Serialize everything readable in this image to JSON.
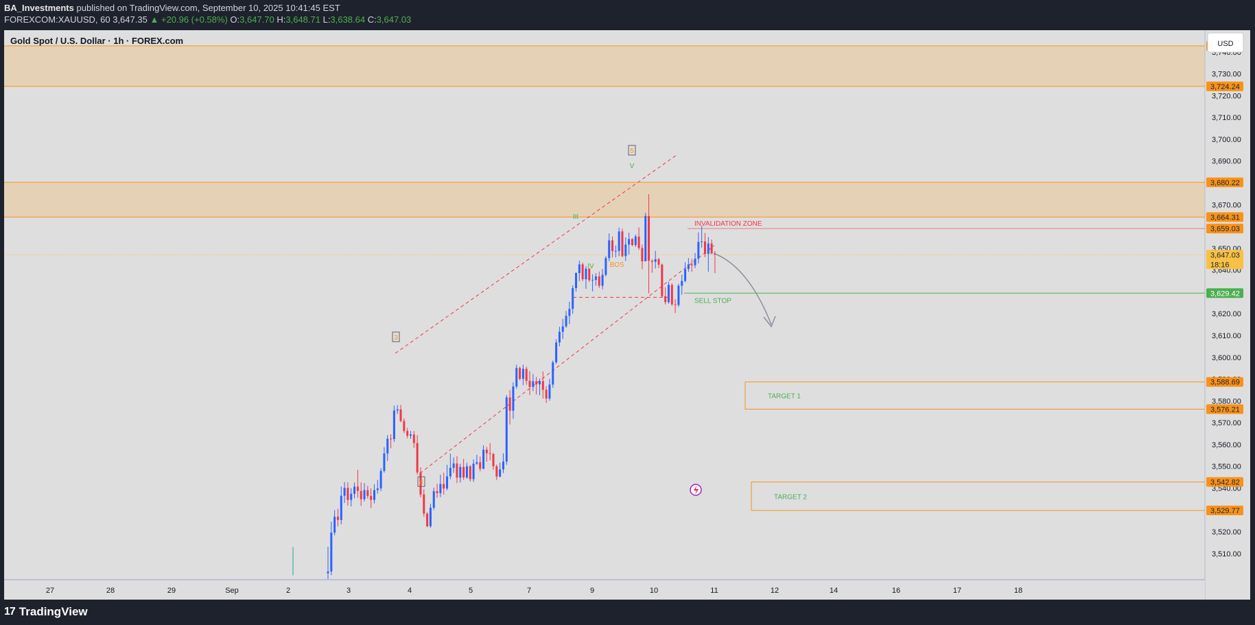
{
  "header": {
    "publisher": "BA_Investments",
    "published_text": "published on TradingView.com, September 10, 2025 10:41:45 EST",
    "symbol_line": "FOREXCOM:XAUUSD, 60",
    "last": "3,647.35",
    "change": "▲ +20.96 (+0.58%)",
    "o_label": "O:",
    "o": "3,647.70",
    "h_label": "H:",
    "h": "3,648.71",
    "l_label": "L:",
    "l": "3,638.64",
    "c_label": "C:",
    "c": "3,647.03"
  },
  "chart_data": {
    "type": "candlestick",
    "title": "Gold Spot / U.S. Dollar · 1h · FOREX.com",
    "currency": "USD",
    "y_range": [
      3498,
      3750
    ],
    "y_ticks": [
      "3,510.00",
      "3,520.00",
      "3,530.00",
      "3,540.00",
      "3,550.00",
      "3,560.00",
      "3,570.00",
      "3,580.00",
      "3,590.00",
      "3,600.00",
      "3,610.00",
      "3,620.00",
      "3,630.00",
      "3,640.00",
      "3,650.00",
      "3,660.00",
      "3,670.00",
      "3,680.00",
      "3,690.00",
      "3,700.00",
      "3,710.00",
      "3,720.00",
      "3,730.00",
      "3,740.00"
    ],
    "x_ticks": [
      "27",
      "28",
      "29",
      "Sep",
      "2",
      "3",
      "4",
      "5",
      "7",
      "9",
      "10",
      "11",
      "12",
      "14",
      "16",
      "17",
      "18"
    ],
    "price_tags": [
      {
        "label": "3,742.79",
        "value": 3742.79,
        "color": "#f7931a",
        "text": "#1e222d"
      },
      {
        "label": "3,724.24",
        "value": 3724.24,
        "color": "#f7931a",
        "text": "#1e222d"
      },
      {
        "label": "3,680.22",
        "value": 3680.22,
        "color": "#f7931a",
        "text": "#1e222d"
      },
      {
        "label": "3,664.31",
        "value": 3664.31,
        "color": "#f7931a",
        "text": "#1e222d"
      },
      {
        "label": "3,659.03",
        "value": 3659.03,
        "color": "#f7931a",
        "text": "#1e222d"
      },
      {
        "label": "3,647.03",
        "value": 3647.03,
        "color": "#f7c145",
        "text": "#1e222d"
      },
      {
        "label": "3,629.42",
        "value": 3629.42,
        "color": "#4caf50",
        "text": "#ffffff"
      },
      {
        "label": "3,588.69",
        "value": 3588.69,
        "color": "#f7931a",
        "text": "#1e222d"
      },
      {
        "label": "3,576.21",
        "value": 3576.21,
        "color": "#f7931a",
        "text": "#1e222d"
      },
      {
        "label": "3,542.82",
        "value": 3542.82,
        "color": "#f7931a",
        "text": "#1e222d"
      },
      {
        "label": "3,529.77",
        "value": 3529.77,
        "color": "#f7931a",
        "text": "#1e222d"
      }
    ],
    "countdown": "18:16",
    "zones": [
      {
        "top": 3742.79,
        "bottom": 3724.24,
        "color": "#f5b65b"
      },
      {
        "top": 3680.22,
        "bottom": 3664.31,
        "color": "#f5b65b"
      }
    ],
    "annotations": {
      "invalidation": {
        "label": "INVALIDATION ZONE",
        "value": 3659.03
      },
      "sell_stop": {
        "label": "SELL STOP",
        "value": 3629.42
      },
      "target1": {
        "label": "TARGET 1",
        "top": 3588.69,
        "bottom": 3576.21
      },
      "target2": {
        "label": "TARGET 2",
        "top": 3542.82,
        "bottom": 3529.77
      },
      "waves": [
        {
          "label": "3",
          "boxed": true
        },
        {
          "label": "4",
          "boxed": true
        },
        {
          "label": "5",
          "boxed": true
        },
        {
          "label": "III",
          "boxed": false
        },
        {
          "label": "IV",
          "boxed": false
        },
        {
          "label": "V",
          "boxed": false
        },
        {
          "label": "BOS",
          "boxed": false
        }
      ]
    },
    "candles": [
      {
        "o": 3501.0,
        "h": 3513.1,
        "l": 3498.3,
        "c": 3501.8
      },
      {
        "o": 3501.8,
        "h": 3524.6,
        "l": 3500.1,
        "c": 3519.6
      },
      {
        "o": 3519.6,
        "h": 3529.9,
        "l": 3518.4,
        "c": 3526.9
      },
      {
        "o": 3526.9,
        "h": 3530.5,
        "l": 3522.5,
        "c": 3525.4
      },
      {
        "o": 3525.4,
        "h": 3540.7,
        "l": 3523.4,
        "c": 3536.5
      },
      {
        "o": 3536.5,
        "h": 3542.8,
        "l": 3533.2,
        "c": 3540.1
      },
      {
        "o": 3540.1,
        "h": 3542.7,
        "l": 3532.0,
        "c": 3534.6
      },
      {
        "o": 3534.6,
        "h": 3540.0,
        "l": 3531.6,
        "c": 3537.4
      },
      {
        "o": 3537.4,
        "h": 3542.6,
        "l": 3535.3,
        "c": 3540.7
      },
      {
        "o": 3540.7,
        "h": 3548.4,
        "l": 3535.6,
        "c": 3538.7
      },
      {
        "o": 3538.7,
        "h": 3542.6,
        "l": 3531.8,
        "c": 3534.9
      },
      {
        "o": 3534.9,
        "h": 3542.3,
        "l": 3533.9,
        "c": 3539.1
      },
      {
        "o": 3539.1,
        "h": 3541.1,
        "l": 3535.2,
        "c": 3536.4
      },
      {
        "o": 3536.4,
        "h": 3539.9,
        "l": 3530.9,
        "c": 3534.6
      },
      {
        "o": 3534.6,
        "h": 3541.8,
        "l": 3533.0,
        "c": 3539.1
      },
      {
        "o": 3539.1,
        "h": 3543.7,
        "l": 3537.5,
        "c": 3539.9
      },
      {
        "o": 3539.9,
        "h": 3549.1,
        "l": 3538.6,
        "c": 3547.9
      },
      {
        "o": 3547.9,
        "h": 3558.8,
        "l": 3547.1,
        "c": 3555.9
      },
      {
        "o": 3555.9,
        "h": 3564.3,
        "l": 3552.4,
        "c": 3562.7
      },
      {
        "o": 3562.7,
        "h": 3564.7,
        "l": 3558.3,
        "c": 3562.5
      },
      {
        "o": 3562.5,
        "h": 3577.9,
        "l": 3561.2,
        "c": 3575.6
      },
      {
        "o": 3575.6,
        "h": 3578.1,
        "l": 3574.1,
        "c": 3576.1
      },
      {
        "o": 3576.1,
        "h": 3578.2,
        "l": 3570.2,
        "c": 3570.8
      },
      {
        "o": 3570.8,
        "h": 3572.0,
        "l": 3565.3,
        "c": 3566.2
      },
      {
        "o": 3566.2,
        "h": 3567.6,
        "l": 3562.9,
        "c": 3564.0
      },
      {
        "o": 3564.0,
        "h": 3566.2,
        "l": 3562.6,
        "c": 3564.6
      },
      {
        "o": 3564.6,
        "h": 3566.2,
        "l": 3558.5,
        "c": 3560.7
      },
      {
        "o": 3560.7,
        "h": 3564.3,
        "l": 3546.2,
        "c": 3547.2
      },
      {
        "o": 3547.2,
        "h": 3549.6,
        "l": 3535.8,
        "c": 3537.1
      },
      {
        "o": 3537.1,
        "h": 3539.5,
        "l": 3526.9,
        "c": 3528.3
      },
      {
        "o": 3528.3,
        "h": 3529.0,
        "l": 3522.1,
        "c": 3522.5
      },
      {
        "o": 3522.5,
        "h": 3532.8,
        "l": 3521.8,
        "c": 3531.0
      },
      {
        "o": 3531.0,
        "h": 3540.2,
        "l": 3530.0,
        "c": 3538.6
      },
      {
        "o": 3538.6,
        "h": 3542.0,
        "l": 3535.6,
        "c": 3537.7
      },
      {
        "o": 3537.7,
        "h": 3546.2,
        "l": 3535.9,
        "c": 3541.9
      },
      {
        "o": 3541.9,
        "h": 3547.1,
        "l": 3537.0,
        "c": 3539.8
      },
      {
        "o": 3539.8,
        "h": 3550.7,
        "l": 3539.0,
        "c": 3545.4
      },
      {
        "o": 3545.4,
        "h": 3555.8,
        "l": 3544.1,
        "c": 3549.3
      },
      {
        "o": 3549.3,
        "h": 3554.1,
        "l": 3547.0,
        "c": 3551.3
      },
      {
        "o": 3551.3,
        "h": 3554.7,
        "l": 3542.3,
        "c": 3544.8
      },
      {
        "o": 3544.8,
        "h": 3551.2,
        "l": 3542.6,
        "c": 3549.7
      },
      {
        "o": 3549.7,
        "h": 3553.4,
        "l": 3543.8,
        "c": 3544.9
      },
      {
        "o": 3544.9,
        "h": 3551.6,
        "l": 3544.3,
        "c": 3550.0
      },
      {
        "o": 3550.0,
        "h": 3550.6,
        "l": 3543.0,
        "c": 3544.1
      },
      {
        "o": 3544.1,
        "h": 3553.2,
        "l": 3542.9,
        "c": 3551.2
      },
      {
        "o": 3551.2,
        "h": 3555.3,
        "l": 3550.6,
        "c": 3551.9
      },
      {
        "o": 3551.9,
        "h": 3554.5,
        "l": 3547.7,
        "c": 3548.9
      },
      {
        "o": 3548.9,
        "h": 3559.7,
        "l": 3548.6,
        "c": 3557.6
      },
      {
        "o": 3557.6,
        "h": 3558.9,
        "l": 3552.1,
        "c": 3556.0
      },
      {
        "o": 3556.0,
        "h": 3560.7,
        "l": 3552.7,
        "c": 3555.7
      },
      {
        "o": 3555.7,
        "h": 3556.1,
        "l": 3548.4,
        "c": 3550.0
      },
      {
        "o": 3550.0,
        "h": 3550.8,
        "l": 3543.7,
        "c": 3545.3
      },
      {
        "o": 3545.3,
        "h": 3551.7,
        "l": 3544.9,
        "c": 3548.6
      },
      {
        "o": 3548.6,
        "h": 3556.0,
        "l": 3546.9,
        "c": 3552.2
      },
      {
        "o": 3552.2,
        "h": 3582.7,
        "l": 3550.7,
        "c": 3581.6
      },
      {
        "o": 3581.6,
        "h": 3585.0,
        "l": 3569.2,
        "c": 3575.5
      },
      {
        "o": 3575.5,
        "h": 3588.5,
        "l": 3571.8,
        "c": 3586.6
      },
      {
        "o": 3586.6,
        "h": 3596.6,
        "l": 3585.6,
        "c": 3595.1
      },
      {
        "o": 3595.1,
        "h": 3595.7,
        "l": 3589.5,
        "c": 3590.1
      },
      {
        "o": 3590.1,
        "h": 3596.6,
        "l": 3587.2,
        "c": 3594.7
      },
      {
        "o": 3594.7,
        "h": 3595.7,
        "l": 3587.4,
        "c": 3589.2
      },
      {
        "o": 3589.2,
        "h": 3593.6,
        "l": 3582.7,
        "c": 3586.4
      },
      {
        "o": 3586.4,
        "h": 3592.3,
        "l": 3584.5,
        "c": 3589.0
      },
      {
        "o": 3589.0,
        "h": 3591.0,
        "l": 3582.9,
        "c": 3587.6
      },
      {
        "o": 3587.6,
        "h": 3590.3,
        "l": 3582.6,
        "c": 3589.1
      },
      {
        "o": 3589.1,
        "h": 3593.5,
        "l": 3581.1,
        "c": 3585.1
      },
      {
        "o": 3585.1,
        "h": 3586.8,
        "l": 3579.1,
        "c": 3581.1
      },
      {
        "o": 3581.1,
        "h": 3590.1,
        "l": 3580.1,
        "c": 3587.5
      },
      {
        "o": 3587.5,
        "h": 3598.5,
        "l": 3586.0,
        "c": 3597.7
      },
      {
        "o": 3597.7,
        "h": 3608.3,
        "l": 3596.9,
        "c": 3606.8
      },
      {
        "o": 3606.8,
        "h": 3614.0,
        "l": 3605.0,
        "c": 3611.7
      },
      {
        "o": 3611.7,
        "h": 3617.6,
        "l": 3608.4,
        "c": 3614.2
      },
      {
        "o": 3614.2,
        "h": 3621.2,
        "l": 3613.5,
        "c": 3619.0
      },
      {
        "o": 3619.0,
        "h": 3625.5,
        "l": 3615.2,
        "c": 3622.2
      },
      {
        "o": 3622.2,
        "h": 3633.0,
        "l": 3620.0,
        "c": 3631.7
      },
      {
        "o": 3631.7,
        "h": 3639.0,
        "l": 3630.1,
        "c": 3638.6
      },
      {
        "o": 3638.6,
        "h": 3644.3,
        "l": 3634.9,
        "c": 3642.6
      },
      {
        "o": 3642.6,
        "h": 3643.4,
        "l": 3634.9,
        "c": 3635.8
      },
      {
        "o": 3635.8,
        "h": 3641.8,
        "l": 3631.4,
        "c": 3640.6
      },
      {
        "o": 3640.6,
        "h": 3640.9,
        "l": 3634.5,
        "c": 3635.4
      },
      {
        "o": 3635.4,
        "h": 3638.1,
        "l": 3630.2,
        "c": 3635.5
      },
      {
        "o": 3635.5,
        "h": 3638.6,
        "l": 3632.8,
        "c": 3637.1
      },
      {
        "o": 3637.1,
        "h": 3639.3,
        "l": 3631.8,
        "c": 3632.8
      },
      {
        "o": 3632.8,
        "h": 3640.5,
        "l": 3631.2,
        "c": 3637.8
      },
      {
        "o": 3637.8,
        "h": 3646.4,
        "l": 3637.1,
        "c": 3645.5
      },
      {
        "o": 3645.5,
        "h": 3656.8,
        "l": 3644.1,
        "c": 3653.6
      },
      {
        "o": 3653.6,
        "h": 3655.4,
        "l": 3645.8,
        "c": 3648.7
      },
      {
        "o": 3648.7,
        "h": 3651.3,
        "l": 3645.8,
        "c": 3648.8
      },
      {
        "o": 3648.8,
        "h": 3659.5,
        "l": 3646.4,
        "c": 3657.7
      },
      {
        "o": 3657.7,
        "h": 3659.0,
        "l": 3645.9,
        "c": 3646.4
      },
      {
        "o": 3646.4,
        "h": 3655.0,
        "l": 3644.2,
        "c": 3651.7
      },
      {
        "o": 3651.7,
        "h": 3657.1,
        "l": 3647.1,
        "c": 3654.2
      },
      {
        "o": 3654.2,
        "h": 3654.7,
        "l": 3650.9,
        "c": 3651.5
      },
      {
        "o": 3651.5,
        "h": 3656.3,
        "l": 3650.6,
        "c": 3655.4
      },
      {
        "o": 3655.4,
        "h": 3659.6,
        "l": 3649.2,
        "c": 3650.1
      },
      {
        "o": 3650.1,
        "h": 3651.7,
        "l": 3640.4,
        "c": 3644.0
      },
      {
        "o": 3644.0,
        "h": 3666.3,
        "l": 3644.2,
        "c": 3664.8
      },
      {
        "o": 3664.8,
        "h": 3674.8,
        "l": 3629.3,
        "c": 3644.3
      },
      {
        "o": 3644.3,
        "h": 3644.9,
        "l": 3638.8,
        "c": 3643.8
      },
      {
        "o": 3643.8,
        "h": 3648.8,
        "l": 3640.7,
        "c": 3645.0
      },
      {
        "o": 3645.0,
        "h": 3645.6,
        "l": 3640.9,
        "c": 3642.5
      },
      {
        "o": 3642.5,
        "h": 3643.0,
        "l": 3627.4,
        "c": 3628.0
      },
      {
        "o": 3628.0,
        "h": 3632.1,
        "l": 3624.2,
        "c": 3625.3
      },
      {
        "o": 3625.3,
        "h": 3634.6,
        "l": 3624.6,
        "c": 3633.2
      },
      {
        "o": 3633.2,
        "h": 3634.0,
        "l": 3623.6,
        "c": 3624.3
      },
      {
        "o": 3624.3,
        "h": 3626.6,
        "l": 3620.3,
        "c": 3624.0
      },
      {
        "o": 3624.0,
        "h": 3633.7,
        "l": 3623.1,
        "c": 3632.8
      },
      {
        "o": 3632.8,
        "h": 3637.9,
        "l": 3628.7,
        "c": 3635.0
      },
      {
        "o": 3635.0,
        "h": 3643.6,
        "l": 3634.4,
        "c": 3640.5
      },
      {
        "o": 3640.5,
        "h": 3645.5,
        "l": 3639.2,
        "c": 3642.6
      },
      {
        "o": 3642.6,
        "h": 3645.1,
        "l": 3639.2,
        "c": 3642.2
      },
      {
        "o": 3642.2,
        "h": 3647.8,
        "l": 3640.9,
        "c": 3645.2
      },
      {
        "o": 3645.2,
        "h": 3657.3,
        "l": 3643.0,
        "c": 3652.9
      },
      {
        "o": 3652.9,
        "h": 3660.3,
        "l": 3650.3,
        "c": 3653.1
      },
      {
        "o": 3653.1,
        "h": 3657.0,
        "l": 3645.9,
        "c": 3647.4
      },
      {
        "o": 3647.4,
        "h": 3655.1,
        "l": 3639.2,
        "c": 3652.2
      },
      {
        "o": 3652.2,
        "h": 3654.0,
        "l": 3647.2,
        "c": 3647.7
      },
      {
        "o": 3647.7,
        "h": 3648.7,
        "l": 3638.6,
        "c": 3647.0
      }
    ]
  },
  "footer": {
    "brand": "TradingView",
    "logo": "17"
  }
}
